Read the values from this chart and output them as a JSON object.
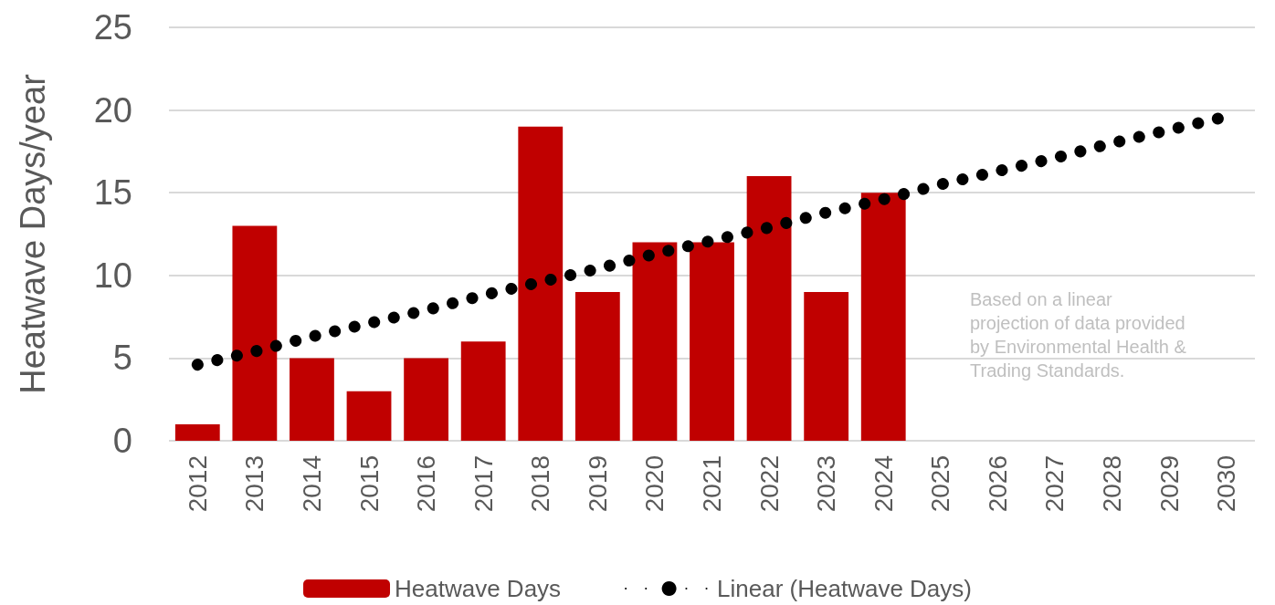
{
  "chart_data": {
    "type": "bar",
    "ylabel": "Heatwave Days/year",
    "categories": [
      "2012",
      "2013",
      "2014",
      "2015",
      "2016",
      "2017",
      "2018",
      "2019",
      "2020",
      "2021",
      "2022",
      "2023",
      "2024",
      "2025",
      "2026",
      "2027",
      "2028",
      "2029",
      "2030"
    ],
    "series": [
      {
        "name": "Heatwave Days",
        "color": "#c00000",
        "values": [
          1,
          13,
          5,
          3,
          5,
          6,
          19,
          9,
          12,
          12,
          16,
          9,
          15,
          null,
          null,
          null,
          null,
          null,
          null
        ]
      },
      {
        "name": "Linear (Heatwave Days)",
        "type": "line",
        "color": "#000000",
        "line_style": "dotted",
        "values": [
          4.6,
          5.4,
          6.3,
          7.1,
          7.9,
          8.8,
          9.6,
          10.4,
          11.3,
          12.1,
          12.9,
          13.8,
          14.6,
          15.5,
          16.3,
          17.1,
          18.0,
          18.8,
          19.6
        ]
      }
    ],
    "ylim": [
      0,
      25
    ],
    "yticks": [
      0,
      5,
      10,
      15,
      20,
      25
    ],
    "grid": "y",
    "legend": "bottom",
    "marker": "none",
    "annotations": [
      "Based on a linear\nprojection of data provided\nby Environmental Health &\nTrading Standards."
    ]
  }
}
